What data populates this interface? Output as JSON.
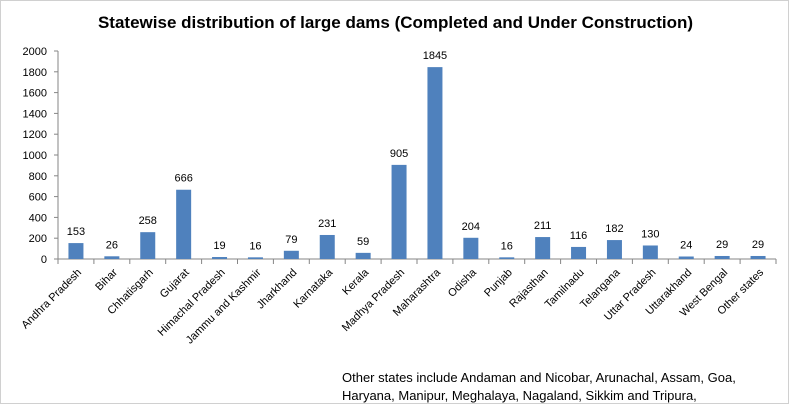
{
  "chart_data": {
    "type": "bar",
    "title": "Statewise distribution of large dams (Completed and Under Construction)",
    "xlabel": "",
    "ylabel": "",
    "ylim": [
      0,
      2000
    ],
    "yticks": [
      0,
      200,
      400,
      600,
      800,
      1000,
      1200,
      1400,
      1600,
      1800,
      2000
    ],
    "grid": false,
    "legend": "none",
    "bar_color": "#4f81bd",
    "categories": [
      "Andhra Pradesh",
      "Bihar",
      "Chhatisgarh",
      "Gujarat",
      "Himachal Pradesh",
      "Jammu and Kashmir",
      "Jharkhand",
      "Karnataka",
      "Kerala",
      "Madhya Pradesh",
      "Maharashtra",
      "Odisha",
      "Punjab",
      "Rajasthan",
      "Tamilnadu",
      "Telangana",
      "Uttar Pradesh",
      "Uttarakhand",
      "West Bengal",
      "Other states"
    ],
    "values": [
      153,
      26,
      258,
      666,
      19,
      16,
      79,
      231,
      59,
      905,
      1845,
      204,
      16,
      211,
      116,
      182,
      130,
      24,
      29,
      29
    ]
  },
  "footnote": {
    "line1": "Other states include Andaman and Nicobar, Arunachal, Assam, Goa,",
    "line2": "Haryana, Manipur, Meghalaya, Nagaland, Sikkim and Tripura,"
  }
}
